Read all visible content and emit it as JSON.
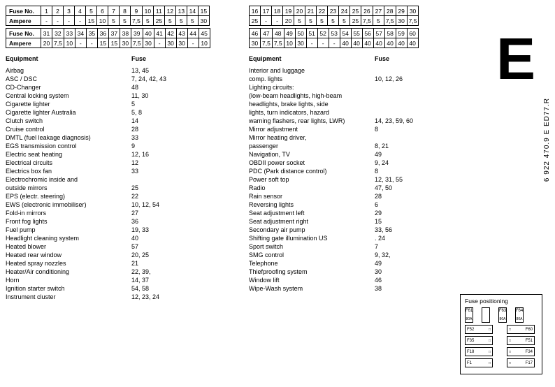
{
  "left": {
    "table1_header": "Fuse No.",
    "table1_nums": [
      "1",
      "2",
      "3",
      "4",
      "5",
      "6",
      "7",
      "8",
      "9",
      "10",
      "11",
      "12",
      "13",
      "14",
      "15"
    ],
    "table1_amp_label": "Ampere",
    "table1_amps": [
      "-",
      "-",
      "-",
      "-",
      "15",
      "10",
      "5",
      "5",
      "7,5",
      "5",
      "25",
      "5",
      "5",
      "5",
      "30"
    ],
    "table2_header": "Fuse No.",
    "table2_nums": [
      "31",
      "32",
      "33",
      "34",
      "35",
      "36",
      "37",
      "38",
      "39",
      "40",
      "41",
      "42",
      "43",
      "44",
      "45"
    ],
    "table2_amp_label": "Ampere",
    "table2_amps": [
      "20",
      "7,5",
      "10",
      "-",
      "-",
      "15",
      "15",
      "30",
      "7,5",
      "30",
      "-",
      "30",
      "30",
      "-",
      "10"
    ],
    "col_eq": "Equipment",
    "col_fuse": "Fuse",
    "items": [
      {
        "e": "Airbag",
        "f": "13, 45"
      },
      {
        "e": "ASC / DSC",
        "f": "7, 24, 42, 43"
      },
      {
        "e": "CD-Changer",
        "f": "48"
      },
      {
        "e": "Central locking system",
        "f": "11, 30"
      },
      {
        "e": "Cigarette lighter",
        "f": "5"
      },
      {
        "e": "Cigarette lighter Australia",
        "f": "5, 8"
      },
      {
        "e": "Clutch switch",
        "f": "14"
      },
      {
        "e": "Cruise control",
        "f": "28"
      },
      {
        "e": "DMTL (fuel leakage diagnosis)",
        "f": "33"
      },
      {
        "e": "EGS transmission control",
        "f": "9"
      },
      {
        "e": "Electric seat heating",
        "f": "12, 16"
      },
      {
        "e": "Electrical circuits",
        "f": "12"
      },
      {
        "e": "Electrics box fan",
        "f": "33"
      },
      {
        "e": "Electrochromic inside and",
        "f": ""
      },
      {
        "e": "outside mirrors",
        "f": "25"
      },
      {
        "e": "EPS (electr. steering)",
        "f": "22"
      },
      {
        "e": "EWS (electronic immobiliser)",
        "f": "10, 12, 54"
      },
      {
        "e": "Fold-in mirrors",
        "f": "27"
      },
      {
        "e": "Front fog lights",
        "f": "36"
      },
      {
        "e": "Fuel pump",
        "f": "19, 33"
      },
      {
        "e": "Headlight cleaning system",
        "f": "40"
      },
      {
        "e": "Heated blower",
        "f": "57"
      },
      {
        "e": "Heated rear window",
        "f": "20, 25"
      },
      {
        "e": "Heated spray nozzles",
        "f": "21"
      },
      {
        "e": "Heater/Air conditioning",
        "f": "22, 39,"
      },
      {
        "e": "Horn",
        "f": "14, 37"
      },
      {
        "e": "Ignition starter switch",
        "f": "54, 58"
      },
      {
        "e": "Instrument cluster",
        "f": "12, 23, 24"
      }
    ]
  },
  "right": {
    "table1_header": "",
    "table1_nums": [
      "16",
      "17",
      "18",
      "19",
      "20",
      "21",
      "22",
      "23",
      "24",
      "25",
      "26",
      "27",
      "28",
      "29",
      "30"
    ],
    "table1_amps": [
      "25",
      "-",
      "-",
      "20",
      "5",
      "5",
      "5",
      "5",
      "5",
      "25",
      "7,5",
      "5",
      "7,5",
      "30",
      "7,5"
    ],
    "table2_nums": [
      "46",
      "47",
      "48",
      "49",
      "50",
      "51",
      "52",
      "53",
      "54",
      "55",
      "56",
      "57",
      "58",
      "59",
      "60"
    ],
    "table2_amps": [
      "30",
      "7,5",
      "7,5",
      "10",
      "30",
      "-",
      "-",
      "-",
      "40",
      "40",
      "40",
      "40",
      "40",
      "40",
      "40"
    ],
    "col_eq": "Equipment",
    "col_fuse": "Fuse",
    "items": [
      {
        "e": "Interior and luggage",
        "f": ""
      },
      {
        "e": "comp. lights",
        "f": "10, 12, 26"
      },
      {
        "e": "Lighting circuits:",
        "f": ""
      },
      {
        "e": "(low-beam headlights, high-beam",
        "f": ""
      },
      {
        "e": "headlights, brake lights, side",
        "f": ""
      },
      {
        "e": "lights, turn indicators, hazard",
        "f": ""
      },
      {
        "e": "warning flashers, rear lights, LWR)",
        "f": "14, 23, 59, 60"
      },
      {
        "e": "Mirror adjustment",
        "f": "8"
      },
      {
        "e": "Mirror heating driver,",
        "f": ""
      },
      {
        "e": "passenger",
        "f": "8, 21"
      },
      {
        "e": "Navigation, TV",
        "f": "49"
      },
      {
        "e": "OBDII power socket",
        "f": "9, 24"
      },
      {
        "e": "PDC (Park distance control)",
        "f": "8"
      },
      {
        "e": "Power soft top",
        "f": "12, 31, 55"
      },
      {
        "e": "Radio",
        "f": "47, 50"
      },
      {
        "e": "Rain sensor",
        "f": "28"
      },
      {
        "e": "Reversing lights",
        "f": "6"
      },
      {
        "e": "Seat adjustment left",
        "f": "29"
      },
      {
        "e": "Seat adjustment right",
        "f": "15"
      },
      {
        "e": "Secondary air pump",
        "f": "33, 56"
      },
      {
        "e": "Shifting gate illumination US",
        "f": ". 24"
      },
      {
        "e": "Sport switch",
        "f": "7"
      },
      {
        "e": "SMG control",
        "f": "9, 32,"
      },
      {
        "e": "Telephone",
        "f": "49"
      },
      {
        "e": "Thiefproofing system",
        "f": "30"
      },
      {
        "e": "Window lift",
        "f": "46"
      },
      {
        "e": "Wipe-Wash system",
        "f": "38"
      }
    ]
  },
  "big_e": "E",
  "code": "6 922 470.9 E ED77.R",
  "fusepos": {
    "title": "Fuse positioning",
    "top": [
      "F61",
      "",
      "F63",
      "F64"
    ],
    "top_amp": [
      "80A",
      "",
      "80A",
      "80A"
    ],
    "rows": [
      [
        "F52",
        "F60"
      ],
      [
        "F35",
        "F51"
      ],
      [
        "F18",
        "F34"
      ],
      [
        "F1",
        "F17"
      ]
    ]
  }
}
